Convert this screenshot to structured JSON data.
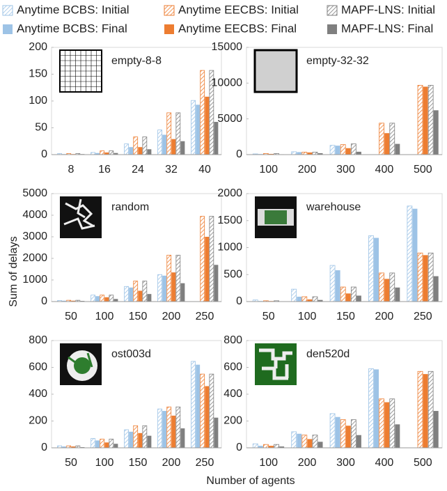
{
  "legend": {
    "series": [
      {
        "name": "Anytime BCBS: Initial",
        "color": "#9dc3e6",
        "hatched": true
      },
      {
        "name": "Anytime BCBS: Final",
        "color": "#9dc3e6",
        "hatched": false
      },
      {
        "name": "Anytime EECBS: Initial",
        "color": "#ed7d31",
        "hatched": true
      },
      {
        "name": "Anytime EECBS: Final",
        "color": "#ed7d31",
        "hatched": false
      },
      {
        "name": "MAPF-LNS: Initial",
        "color": "#7f7f7f",
        "hatched": true
      },
      {
        "name": "MAPF-LNS: Final",
        "color": "#7f7f7f",
        "hatched": false
      }
    ]
  },
  "ylabel": "Sum of delays",
  "xlabel": "Number of agents",
  "chart_data": [
    {
      "type": "bar",
      "title": "empty-8-8",
      "categories": [
        8,
        16,
        24,
        32,
        40
      ],
      "ylim": [
        0,
        200
      ],
      "yticks": [
        0,
        50,
        100,
        150,
        200
      ],
      "series": [
        {
          "values": [
            2,
            4,
            20,
            46,
            101
          ]
        },
        {
          "values": [
            1,
            3,
            14,
            37,
            93
          ]
        },
        {
          "values": [
            2,
            7,
            33,
            78,
            157
          ]
        },
        {
          "values": [
            1,
            4,
            14,
            29,
            108
          ]
        },
        {
          "values": [
            2,
            7,
            33,
            78,
            157
          ]
        },
        {
          "values": [
            1,
            3,
            10,
            25,
            61
          ]
        }
      ]
    },
    {
      "type": "bar",
      "title": "empty-32-32",
      "categories": [
        100,
        200,
        300,
        400,
        500
      ],
      "ylim": [
        0,
        15000
      ],
      "yticks": [
        0,
        5000,
        10000,
        15000
      ],
      "series": [
        {
          "values": [
            100,
            400,
            1300,
            null,
            null
          ]
        },
        {
          "values": [
            80,
            350,
            1250,
            null,
            null
          ]
        },
        {
          "values": [
            150,
            350,
            1400,
            4400,
            9700
          ]
        },
        {
          "values": [
            100,
            300,
            900,
            3000,
            9500
          ]
        },
        {
          "values": [
            150,
            350,
            1500,
            4400,
            9700
          ]
        },
        {
          "values": [
            50,
            200,
            400,
            1500,
            6200
          ]
        }
      ]
    },
    {
      "type": "bar",
      "title": "random",
      "categories": [
        50,
        100,
        150,
        200,
        250
      ],
      "ylim": [
        0,
        5000
      ],
      "yticks": [
        0,
        1000,
        2000,
        3000,
        4000,
        5000
      ],
      "series": [
        {
          "values": [
            50,
            300,
            700,
            1250,
            null
          ]
        },
        {
          "values": [
            40,
            250,
            650,
            1200,
            null
          ]
        },
        {
          "values": [
            60,
            300,
            950,
            2150,
            3950
          ]
        },
        {
          "values": [
            40,
            200,
            500,
            1350,
            3000
          ]
        },
        {
          "values": [
            60,
            300,
            950,
            2150,
            3950
          ]
        },
        {
          "values": [
            30,
            120,
            350,
            850,
            1700
          ]
        }
      ]
    },
    {
      "type": "bar",
      "title": "warehouse",
      "categories": [
        50,
        100,
        150,
        200,
        250
      ],
      "ylim": [
        0,
        2000
      ],
      "yticks": [
        0,
        500,
        1000,
        1500,
        2000
      ],
      "series": [
        {
          "values": [
            30,
            230,
            670,
            1220,
            1770
          ]
        },
        {
          "values": [
            10,
            90,
            580,
            1180,
            1720
          ]
        },
        {
          "values": [
            15,
            90,
            270,
            530,
            900
          ]
        },
        {
          "values": [
            10,
            40,
            150,
            420,
            860
          ]
        },
        {
          "values": [
            15,
            90,
            270,
            530,
            900
          ]
        },
        {
          "values": [
            5,
            30,
            110,
            260,
            470
          ]
        }
      ]
    },
    {
      "type": "bar",
      "title": "ost003d",
      "categories": [
        50,
        100,
        150,
        200,
        250
      ],
      "ylim": [
        0,
        800
      ],
      "yticks": [
        0,
        200,
        400,
        600,
        800
      ],
      "series": [
        {
          "values": [
            15,
            70,
            135,
            290,
            645
          ]
        },
        {
          "values": [
            10,
            55,
            120,
            275,
            620
          ]
        },
        {
          "values": [
            15,
            65,
            165,
            305,
            550
          ]
        },
        {
          "values": [
            10,
            40,
            110,
            240,
            460
          ]
        },
        {
          "values": [
            15,
            65,
            165,
            305,
            550
          ]
        },
        {
          "values": [
            5,
            30,
            90,
            145,
            225
          ]
        }
      ]
    },
    {
      "type": "bar",
      "title": "den520d",
      "categories": [
        100,
        200,
        300,
        400,
        500
      ],
      "ylim": [
        0,
        800
      ],
      "yticks": [
        0,
        200,
        400,
        600,
        800
      ],
      "series": [
        {
          "values": [
            30,
            120,
            255,
            590,
            null
          ]
        },
        {
          "values": [
            15,
            105,
            230,
            585,
            null
          ]
        },
        {
          "values": [
            25,
            95,
            210,
            365,
            570
          ]
        },
        {
          "values": [
            15,
            65,
            165,
            340,
            550
          ]
        },
        {
          "values": [
            25,
            95,
            210,
            365,
            570
          ]
        },
        {
          "values": [
            10,
            45,
            95,
            175,
            275
          ]
        }
      ]
    }
  ]
}
